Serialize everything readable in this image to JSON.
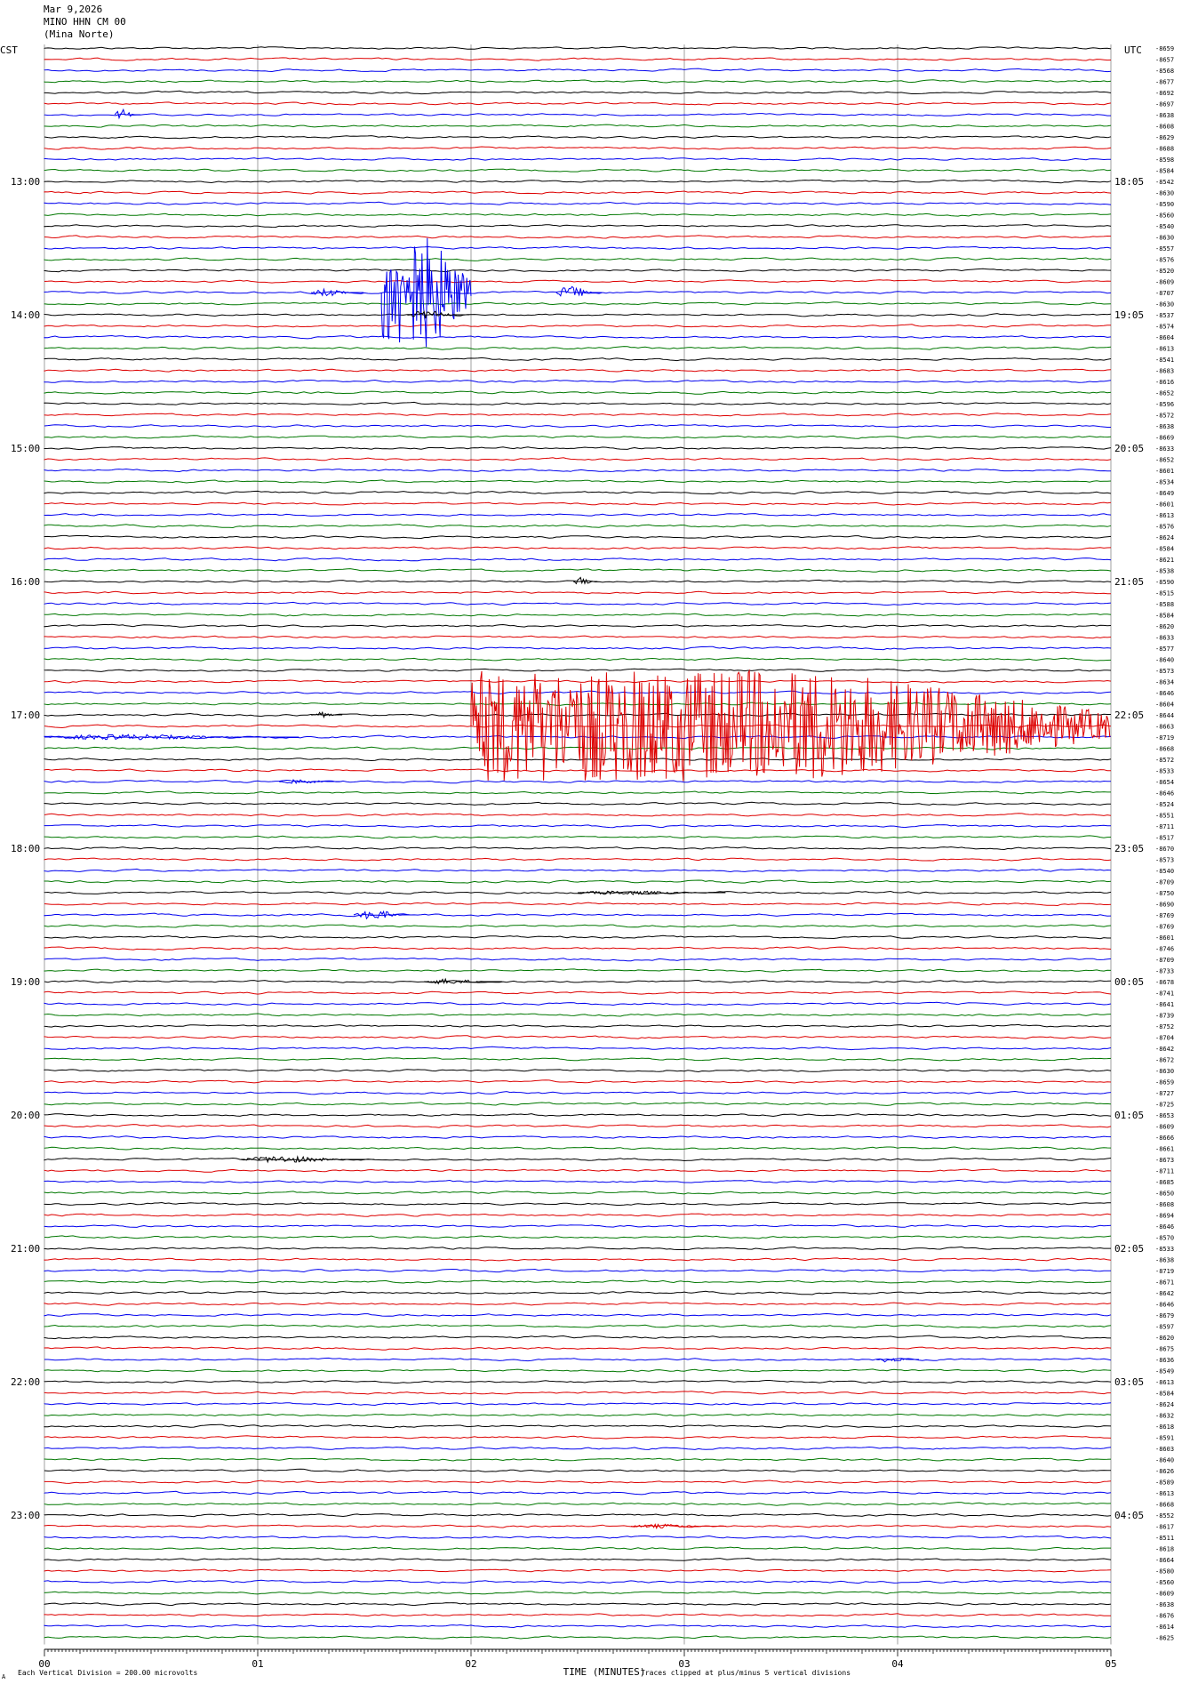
{
  "header": {
    "date": "Mar 9,2026",
    "station": "MINO HHN CM 00",
    "site": "(Mina Norte)"
  },
  "left_tz": "CST",
  "right_tz": "UTC",
  "footer": {
    "scale_note": "Each Vertical Division =  200.00 microvolts",
    "axis_title": "TIME (MINUTES)",
    "clip_note": "Traces clipped at plus/minus 5 vertical divisions",
    "scale_mark": "A"
  },
  "colors": {
    "trace_cycle": [
      "#000000",
      "#dd0000",
      "#0000ee",
      "#007700"
    ],
    "grid": "#888888"
  },
  "chart_data": {
    "type": "line",
    "title": "",
    "xlabel": "TIME (MINUTES)",
    "ylabel": "",
    "xlim": [
      0,
      5
    ],
    "x_ticks": [
      "00",
      "01",
      "02",
      "03",
      "04",
      "05"
    ],
    "rows_per_hour": 12,
    "minutes_per_row": 5,
    "left_hour_labels": [
      "13:00",
      "14:00",
      "15:00",
      "16:00",
      "17:00",
      "18:00",
      "19:00",
      "20:00",
      "21:00",
      "22:00",
      "23:00"
    ],
    "right_hour_labels": [
      "18:05",
      "19:05",
      "20:05",
      "21:05",
      "22:05",
      "23:05",
      "00:05",
      "01:05",
      "02:05",
      "03:05",
      "04:05"
    ],
    "right_values": [
      "-8659",
      "-8657",
      "-8568",
      "-8677",
      "-8692",
      "-8697",
      "-8638",
      "-8608",
      "-8629",
      "-8688",
      "-8598",
      "-8584",
      "-8542",
      "-8630",
      "-8590",
      "-8560",
      "-8540",
      "-8630",
      "-8557",
      "-8576",
      "-8520",
      "-8609",
      "-8707",
      "-8630",
      "-8537",
      "-8574",
      "-8604",
      "-8613",
      "-8541",
      "-8683",
      "-8616",
      "-8652",
      "-8596",
      "-8572",
      "-8638",
      "-8669",
      "-8633",
      "-8652",
      "-8601",
      "-8534",
      "-8649",
      "-8601",
      "-8613",
      "-8576",
      "-8624",
      "-8584",
      "-8621",
      "-8538",
      "-8590",
      "-8515",
      "-8588",
      "-8584",
      "-8620",
      "-8633",
      "-8577",
      "-8640",
      "-8573",
      "-8634",
      "-8646",
      "-8604",
      "-8644",
      "-8663",
      "-8719",
      "-8668",
      "-8572",
      "-8533",
      "-8654",
      "-8646",
      "-8524",
      "-8551",
      "-8711",
      "-8517",
      "-8670",
      "-8573",
      "-8540",
      "-8709",
      "-8750",
      "-8690",
      "-8769",
      "-8769",
      "-8601",
      "-8746",
      "-8709",
      "-8733",
      "-8678",
      "-8741",
      "-8641",
      "-8739",
      "-8752",
      "-8704",
      "-8642",
      "-8672",
      "-8630",
      "-8659",
      "-8727",
      "-8725",
      "-8653",
      "-8609",
      "-8666",
      "-8661",
      "-8673",
      "-8711",
      "-8685",
      "-8650",
      "-8608",
      "-8694",
      "-8646",
      "-8570",
      "-8533",
      "-8638",
      "-8719",
      "-8671",
      "-8642",
      "-8646",
      "-8679",
      "-8597",
      "-8620",
      "-8675",
      "-8636",
      "-8549",
      "-8613",
      "-8584",
      "-8624",
      "-8632",
      "-8618",
      "-8591",
      "-8603",
      "-8640",
      "-8626",
      "-8589",
      "-8613",
      "-8668",
      "-8552",
      "-8617",
      "-8511",
      "-8618",
      "-8664",
      "-8580",
      "-8560",
      "-8609",
      "-8638",
      "-8676",
      "-8614",
      "-8625"
    ],
    "row_count": 144,
    "first_row_offset": 12,
    "events": [
      {
        "row": 6,
        "start_min": 0.33,
        "end_min": 0.45,
        "amp_div": 0.8
      },
      {
        "row": 22,
        "start_min": 1.25,
        "end_min": 1.5,
        "amp_div": 0.6
      },
      {
        "row": 22,
        "start_min": 1.58,
        "end_min": 2.0,
        "amp_div": 5.0,
        "clipped": true
      },
      {
        "row": 22,
        "start_min": 2.4,
        "end_min": 2.62,
        "amp_div": 1.0
      },
      {
        "row": 24,
        "start_min": 1.7,
        "end_min": 2.0,
        "amp_div": 0.6
      },
      {
        "row": 48,
        "start_min": 2.48,
        "end_min": 2.6,
        "amp_div": 0.6
      },
      {
        "row": 60,
        "start_min": 1.25,
        "end_min": 1.4,
        "amp_div": 0.4
      },
      {
        "row": 62,
        "start_min": 0.0,
        "end_min": 1.2,
        "amp_div": 0.4
      },
      {
        "row": 61,
        "start_min": 2.0,
        "end_min": 5.0,
        "amp_div": 5.0,
        "clipped": true
      },
      {
        "row": 66,
        "start_min": 1.1,
        "end_min": 1.4,
        "amp_div": 0.3
      },
      {
        "row": 76,
        "start_min": 2.5,
        "end_min": 3.2,
        "amp_div": 0.3
      },
      {
        "row": 78,
        "start_min": 1.45,
        "end_min": 1.75,
        "amp_div": 0.7
      },
      {
        "row": 84,
        "start_min": 1.78,
        "end_min": 2.15,
        "amp_div": 0.4
      },
      {
        "row": 100,
        "start_min": 0.92,
        "end_min": 1.55,
        "amp_div": 0.5
      },
      {
        "row": 118,
        "start_min": 3.9,
        "end_min": 4.1,
        "amp_div": 0.4
      },
      {
        "row": 133,
        "start_min": 2.75,
        "end_min": 3.2,
        "amp_div": 0.3
      }
    ]
  }
}
